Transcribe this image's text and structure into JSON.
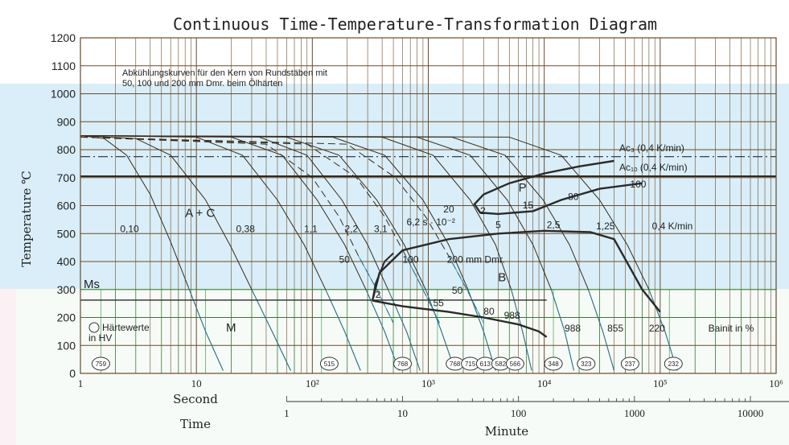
{
  "colors": {
    "grid": "#6b4a2a",
    "curve": "#3a2a1a",
    "phase": "#2a2a2a",
    "accent": "#1a8fb0",
    "green": "#2a8a3a"
  },
  "chart_data": {
    "type": "line",
    "title": "Continuous Time-Temperature-Transformation Diagram",
    "ylabel": "Temperature ℃",
    "ylim": [
      0,
      1200
    ],
    "yticks": [
      "0",
      "100",
      "200",
      "300",
      "400",
      "500",
      "600",
      "700",
      "800",
      "900",
      "1000",
      "1100",
      "1200"
    ],
    "x_scale": "log",
    "x_seconds_range": [
      1,
      1000000
    ],
    "x_seconds_labels": [
      "1",
      "10",
      "10²",
      "10³",
      "10⁴",
      "10⁵",
      "10⁶"
    ],
    "x_seconds_title": "Second",
    "x_minutes_labels": [
      "1",
      "10",
      "100",
      "1000",
      "10000"
    ],
    "x_minutes_title": "Minute",
    "x_time_title": "Time",
    "note_line1": "Abkühlungskurven für den Kern von Rundstäben mit",
    "note_line2": "50, 100 und 200 mm Dmr. beim Ölhärten",
    "ac3": {
      "label": "Ac₃ (0,4 K/min)",
      "temp": 775
    },
    "ac1": {
      "label": "Ac₁ₒ (0,4 K/min)",
      "temp": 705
    },
    "ms": {
      "label": "Ms",
      "temp": 262
    },
    "phase_labels": [
      {
        "text": "A + C",
        "t": 8,
        "temp": 560,
        "size": "big"
      },
      {
        "text": "P",
        "t": 6000,
        "temp": 650,
        "size": "big"
      },
      {
        "text": "B",
        "t": 4000,
        "temp": 330,
        "size": "big"
      },
      {
        "text": "M",
        "t": 18,
        "temp": 150,
        "size": "big"
      }
    ],
    "rate_labels": [
      {
        "text": "0,10",
        "t": 2.2,
        "temp": 505
      },
      {
        "text": "0,38",
        "t": 22,
        "temp": 505
      },
      {
        "text": "1,1",
        "t": 85,
        "temp": 505
      },
      {
        "text": "2,2",
        "t": 190,
        "temp": 505
      },
      {
        "text": "3,1",
        "t": 340,
        "temp": 505
      },
      {
        "text": "6,2 s · 10⁻²",
        "t": 650,
        "temp": 530
      },
      {
        "text": "20",
        "t": 1350,
        "temp": 575
      },
      {
        "text": "5",
        "t": 3800,
        "temp": 520
      },
      {
        "text": "2,5",
        "t": 10500,
        "temp": 520
      },
      {
        "text": "1,25",
        "t": 28000,
        "temp": 515
      },
      {
        "text": "0,4 K/min",
        "t": 85000,
        "temp": 515
      },
      {
        "text": "2",
        "t": 2800,
        "temp": 570
      },
      {
        "text": "15",
        "t": 6500,
        "temp": 590
      },
      {
        "text": "80",
        "t": 16000,
        "temp": 620
      },
      {
        "text": "100",
        "t": 55000,
        "temp": 665
      },
      {
        "text": "50",
        "t": 170,
        "temp": 395
      },
      {
        "text": "100",
        "t": 600,
        "temp": 395
      },
      {
        "text": "200 mm Dmr.",
        "t": 1450,
        "temp": 395
      },
      {
        "text": "2",
        "t": 350,
        "temp": 270
      },
      {
        "text": "50",
        "t": 1600,
        "temp": 285
      },
      {
        "text": "55",
        "t": 1100,
        "temp": 240
      },
      {
        "text": "80",
        "t": 3000,
        "temp": 210
      },
      {
        "text": "988",
        "t": 4500,
        "temp": 195
      },
      {
        "text": "988",
        "t": 15000,
        "temp": 150
      },
      {
        "text": "855",
        "t": 35000,
        "temp": 150
      },
      {
        "text": "220",
        "t": 80000,
        "temp": 150
      },
      {
        "text": "Bainit in %",
        "t": 260000,
        "temp": 150
      }
    ],
    "legend_text_1": "Härtewerte",
    "legend_text_2": "in HV",
    "hardness": [
      {
        "t": 1.5,
        "value": "759"
      },
      {
        "t": 140,
        "value": "515"
      },
      {
        "t": 600,
        "value": "768"
      },
      {
        "t": 1700,
        "value": "768"
      },
      {
        "t": 2300,
        "value": "715"
      },
      {
        "t": 3100,
        "value": "613"
      },
      {
        "t": 4200,
        "value": "582"
      },
      {
        "t": 5600,
        "value": "566"
      },
      {
        "t": 12000,
        "value": "348"
      },
      {
        "t": 23000,
        "value": "323"
      },
      {
        "t": 55000,
        "value": "237"
      },
      {
        "t": 130000,
        "value": "232"
      }
    ],
    "cooling_curves": [
      {
        "name": "0,10",
        "points": [
          [
            1,
            850
          ],
          [
            1.6,
            840
          ],
          [
            2.5,
            780
          ],
          [
            4,
            640
          ],
          [
            6,
            470
          ],
          [
            8.5,
            310
          ],
          [
            12,
            150
          ],
          [
            17,
            10
          ]
        ]
      },
      {
        "name": "0,38",
        "points": [
          [
            1,
            850
          ],
          [
            3,
            840
          ],
          [
            6,
            780
          ],
          [
            12,
            620
          ],
          [
            20,
            450
          ],
          [
            30,
            300
          ],
          [
            45,
            150
          ],
          [
            65,
            10
          ]
        ]
      },
      {
        "name": "1,1",
        "points": [
          [
            1,
            850
          ],
          [
            10,
            845
          ],
          [
            25,
            780
          ],
          [
            50,
            620
          ],
          [
            85,
            460
          ],
          [
            130,
            300
          ],
          [
            190,
            150
          ],
          [
            260,
            10
          ]
        ]
      },
      {
        "name": "2,2",
        "points": [
          [
            1,
            850
          ],
          [
            20,
            845
          ],
          [
            55,
            780
          ],
          [
            110,
            620
          ],
          [
            190,
            460
          ],
          [
            290,
            300
          ],
          [
            420,
            150
          ],
          [
            560,
            10
          ]
        ]
      },
      {
        "name": "3,1",
        "points": [
          [
            1,
            850
          ],
          [
            35,
            845
          ],
          [
            90,
            780
          ],
          [
            180,
            620
          ],
          [
            300,
            460
          ],
          [
            450,
            300
          ],
          [
            650,
            150
          ],
          [
            850,
            10
          ]
        ]
      },
      {
        "name": "6,2",
        "points": [
          [
            1,
            850
          ],
          [
            60,
            845
          ],
          [
            170,
            780
          ],
          [
            360,
            620
          ],
          [
            620,
            460
          ],
          [
            950,
            300
          ],
          [
            1300,
            150
          ],
          [
            1700,
            10
          ]
        ]
      },
      {
        "name": "20",
        "points": [
          [
            1,
            850
          ],
          [
            150,
            845
          ],
          [
            420,
            780
          ],
          [
            900,
            620
          ],
          [
            1500,
            460
          ],
          [
            2200,
            300
          ],
          [
            3000,
            150
          ],
          [
            3800,
            10
          ]
        ]
      },
      {
        "name": "5",
        "points": [
          [
            1,
            850
          ],
          [
            400,
            845
          ],
          [
            1100,
            780
          ],
          [
            2300,
            620
          ],
          [
            3800,
            460
          ],
          [
            5200,
            300
          ],
          [
            6500,
            150
          ],
          [
            7800,
            10
          ]
        ]
      },
      {
        "name": "2,5",
        "points": [
          [
            1,
            850
          ],
          [
            800,
            845
          ],
          [
            2300,
            780
          ],
          [
            4800,
            620
          ],
          [
            8000,
            460
          ],
          [
            11500,
            300
          ],
          [
            15000,
            150
          ],
          [
            18000,
            10
          ]
        ]
      },
      {
        "name": "1,25",
        "points": [
          [
            1,
            850
          ],
          [
            1600,
            845
          ],
          [
            4600,
            780
          ],
          [
            9800,
            620
          ],
          [
            16500,
            460
          ],
          [
            24000,
            300
          ],
          [
            32000,
            150
          ],
          [
            40000,
            10
          ]
        ]
      },
      {
        "name": "0,4",
        "points": [
          [
            1,
            850
          ],
          [
            5000,
            845
          ],
          [
            14000,
            780
          ],
          [
            30000,
            620
          ],
          [
            52000,
            460
          ],
          [
            80000,
            300
          ],
          [
            110000,
            150
          ],
          [
            140000,
            10
          ]
        ]
      },
      {
        "name": "50 mm",
        "points": [
          [
            1,
            845
          ],
          [
            40,
            820
          ],
          [
            100,
            700
          ],
          [
            170,
            560
          ],
          [
            250,
            420
          ],
          [
            360,
            300
          ],
          [
            500,
            180
          ]
        ]
      },
      {
        "name": "100 mm",
        "points": [
          [
            1,
            845
          ],
          [
            90,
            820
          ],
          [
            240,
            700
          ],
          [
            420,
            560
          ],
          [
            640,
            420
          ],
          [
            900,
            300
          ],
          [
            1250,
            180
          ]
        ]
      },
      {
        "name": "200 mm",
        "points": [
          [
            1,
            845
          ],
          [
            200,
            820
          ],
          [
            520,
            700
          ],
          [
            950,
            560
          ],
          [
            1500,
            420
          ],
          [
            2150,
            300
          ],
          [
            3000,
            180
          ]
        ]
      }
    ],
    "pearlite_nose": [
      [
        40000,
        760
      ],
      [
        20000,
        740
      ],
      [
        10000,
        715
      ],
      [
        5000,
        680
      ],
      [
        3000,
        640
      ],
      [
        2500,
        605
      ],
      [
        2800,
        575
      ],
      [
        4000,
        570
      ],
      [
        8000,
        580
      ],
      [
        14000,
        620
      ],
      [
        30000,
        660
      ],
      [
        70000,
        680
      ]
    ],
    "bainite_upper": [
      [
        330,
        260
      ],
      [
        380,
        360
      ],
      [
        600,
        440
      ],
      [
        1500,
        480
      ],
      [
        4000,
        500
      ],
      [
        10000,
        510
      ],
      [
        25000,
        505
      ],
      [
        40000,
        480
      ],
      [
        70000,
        300
      ],
      [
        100000,
        220
      ]
    ],
    "bainite_lower": [
      [
        330,
        260
      ],
      [
        600,
        240
      ],
      [
        1500,
        220
      ],
      [
        3000,
        200
      ],
      [
        6000,
        175
      ],
      [
        9000,
        150
      ],
      [
        10500,
        130
      ]
    ],
    "bainite_start_left": [
      [
        330,
        260
      ],
      [
        350,
        320
      ],
      [
        420,
        400
      ],
      [
        500,
        430
      ]
    ],
    "green_lines_t": [
      1.5,
      2,
      3,
      5,
      7,
      12,
      20,
      30,
      50,
      70,
      120,
      200,
      300,
      500,
      700,
      1200,
      2000,
      3000,
      5000,
      7000,
      12000,
      20000,
      30000,
      50000,
      70000,
      120000,
      200000,
      300000,
      500000
    ]
  }
}
